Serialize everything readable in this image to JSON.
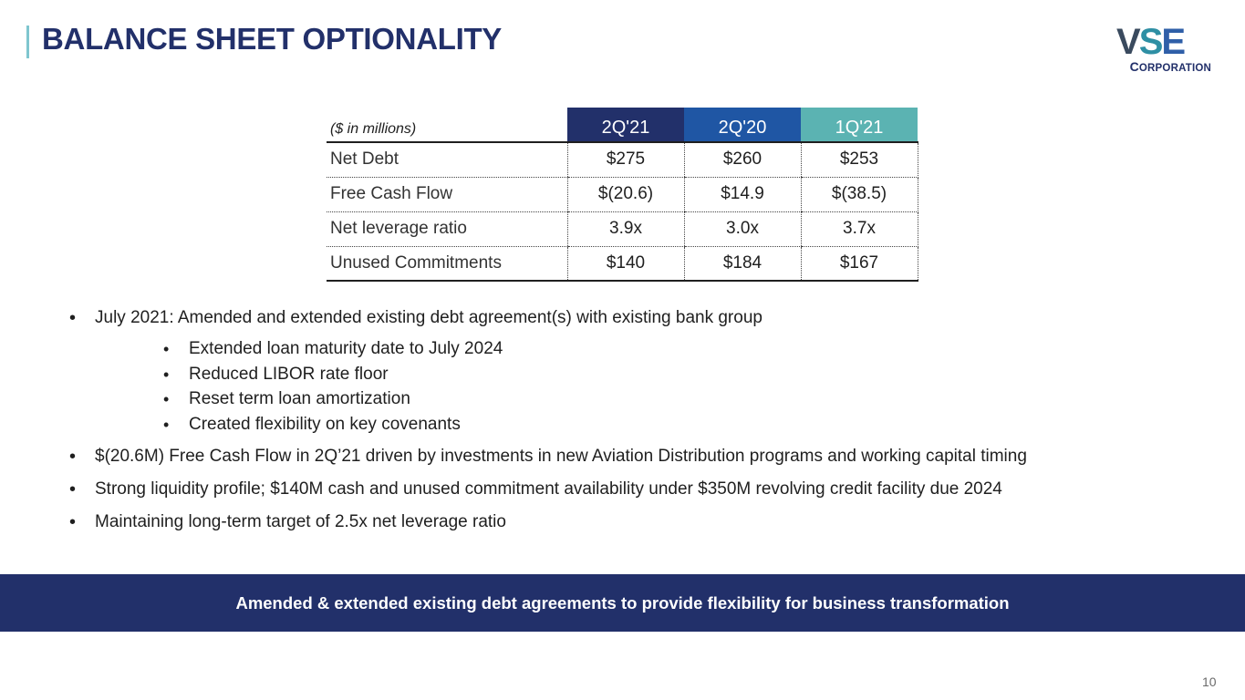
{
  "header": {
    "title": "BALANCE SHEET OPTIONALITY",
    "accent_color": "#7fc6cf",
    "title_color": "#22306a"
  },
  "logo": {
    "letters": [
      "V",
      "S",
      "E"
    ],
    "corp_initial": "C",
    "corp_rest": "ORPORATION"
  },
  "table": {
    "units_label": "($ in millions)",
    "columns": [
      {
        "label": "2Q'21",
        "color": "#22306a"
      },
      {
        "label": "2Q'20",
        "color": "#1f56a4"
      },
      {
        "label": "1Q'21",
        "color": "#5bb3b2"
      }
    ],
    "rows": [
      {
        "label": "Net Debt",
        "values": [
          "$275",
          "$260",
          "$253"
        ]
      },
      {
        "label": "Free Cash Flow",
        "values": [
          "$(20.6)",
          "$14.9",
          "$(38.5)"
        ]
      },
      {
        "label": "Net leverage ratio",
        "values": [
          "3.9x",
          "3.0x",
          "3.7x"
        ]
      },
      {
        "label": "Unused Commitments",
        "values": [
          "$140",
          "$184",
          "$167"
        ]
      }
    ]
  },
  "bullets": [
    {
      "text": "July 2021: Amended and extended existing debt agreement(s) with existing bank group",
      "sub": [
        "Extended loan maturity date to July 2024",
        "Reduced LIBOR rate floor",
        "Reset term loan amortization",
        "Created flexibility on key covenants"
      ]
    },
    {
      "text": "$(20.6M) Free Cash Flow in 2Q’21 driven by investments in new Aviation Distribution programs and working capital timing"
    },
    {
      "text": "Strong liquidity profile; $140M cash and unused commitment availability under $350M revolving credit facility due 2024"
    },
    {
      "text": "Maintaining long-term target of 2.5x net leverage ratio"
    }
  ],
  "banner": {
    "text": "Amended & extended existing debt agreements to provide flexibility for business transformation",
    "color": "#22306a"
  },
  "page_number": "10"
}
